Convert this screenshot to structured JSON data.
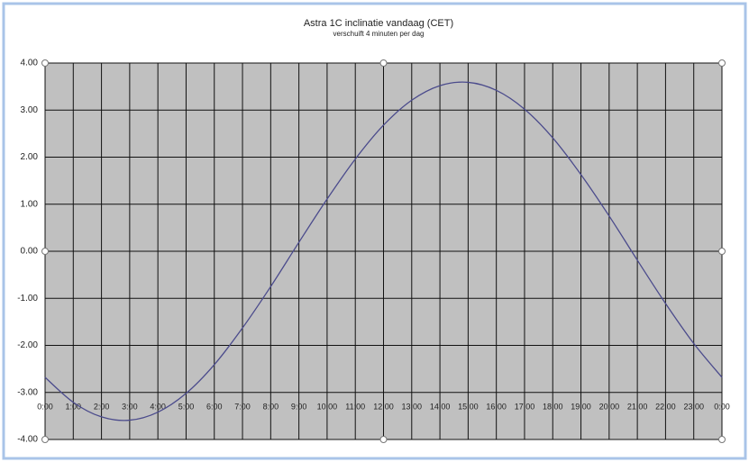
{
  "chart_data": {
    "type": "line",
    "title": "Astra 1C inclinatie vandaag (CET)",
    "subtitle": "verschuift 4 minuten per dag",
    "x": [
      0,
      1,
      2,
      3,
      4,
      5,
      6,
      7,
      8,
      9,
      10,
      11,
      12,
      13,
      14,
      15,
      16,
      17,
      18,
      19,
      20,
      21,
      22,
      23,
      24
    ],
    "series": [
      {
        "color": "#4b4b8c",
        "values": [
          -2.68,
          -3.21,
          -3.52,
          -3.59,
          -3.42,
          -3.02,
          -2.41,
          -1.63,
          -0.75,
          0.19,
          1.11,
          1.96,
          2.68,
          3.21,
          3.52,
          3.59,
          3.42,
          3.02,
          2.41,
          1.63,
          0.75,
          -0.19,
          -1.11,
          -1.96,
          -2.68
        ]
      }
    ],
    "xlim": [
      0,
      24
    ],
    "xticks": [
      {
        "value": 0,
        "label": "0:00"
      },
      {
        "value": 1,
        "label": "1:00"
      },
      {
        "value": 2,
        "label": "2:00"
      },
      {
        "value": 3,
        "label": "3:00"
      },
      {
        "value": 4,
        "label": "4:00"
      },
      {
        "value": 5,
        "label": "5:00"
      },
      {
        "value": 6,
        "label": "6:00"
      },
      {
        "value": 7,
        "label": "7:00"
      },
      {
        "value": 8,
        "label": "8:00"
      },
      {
        "value": 9,
        "label": "9:00"
      },
      {
        "value": 10,
        "label": "10:00"
      },
      {
        "value": 11,
        "label": "11:00"
      },
      {
        "value": 12,
        "label": "12:00"
      },
      {
        "value": 13,
        "label": "13:00"
      },
      {
        "value": 14,
        "label": "14:00"
      },
      {
        "value": 15,
        "label": "15:00"
      },
      {
        "value": 16,
        "label": "16:00"
      },
      {
        "value": 17,
        "label": "17:00"
      },
      {
        "value": 18,
        "label": "18:00"
      },
      {
        "value": 19,
        "label": "19:00"
      },
      {
        "value": 20,
        "label": "20:00"
      },
      {
        "value": 21,
        "label": "21:00"
      },
      {
        "value": 22,
        "label": "22:00"
      },
      {
        "value": 23,
        "label": "23:00"
      },
      {
        "value": 24,
        "label": "0:00"
      }
    ],
    "ylim": [
      -4,
      4
    ],
    "yticks": [
      {
        "value": -4,
        "label": "-4.00"
      },
      {
        "value": -3,
        "label": "-3.00"
      },
      {
        "value": -2,
        "label": "-2.00"
      },
      {
        "value": -1,
        "label": "-1.00"
      },
      {
        "value": 0,
        "label": "0.00"
      },
      {
        "value": 1,
        "label": "1.00"
      },
      {
        "value": 2,
        "label": "2.00"
      },
      {
        "value": 3,
        "label": "3.00"
      },
      {
        "value": 4,
        "label": "4.00"
      }
    ],
    "grid": true
  }
}
